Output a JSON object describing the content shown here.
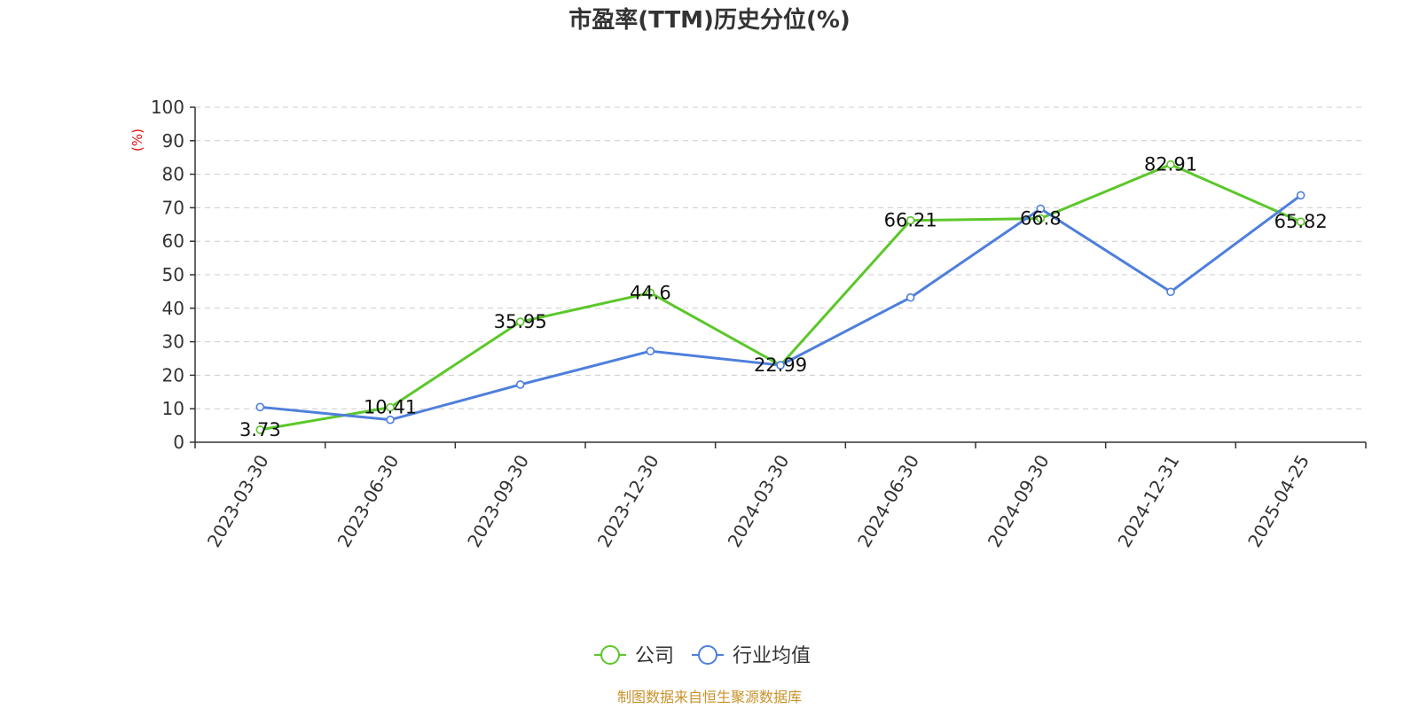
{
  "chart_data": {
    "type": "line",
    "title": "市盈率(TTM)历史分位(%)",
    "ylabel": "(%)",
    "xlabel": "",
    "categories": [
      "2023-03-30",
      "2023-06-30",
      "2023-09-30",
      "2023-12-30",
      "2024-03-30",
      "2024-06-30",
      "2024-09-30",
      "2024-12-31",
      "2025-04-25"
    ],
    "ylim": [
      0,
      100
    ],
    "yticks": [
      0,
      10,
      20,
      30,
      40,
      50,
      60,
      70,
      80,
      90,
      100
    ],
    "grid": true,
    "legend_position": "bottom-center",
    "series": [
      {
        "name": "公司",
        "color": "#5cc72a",
        "values": [
          3.73,
          10.41,
          35.95,
          44.6,
          22.99,
          66.21,
          66.8,
          82.91,
          65.82
        ],
        "labels": [
          "3.73",
          "10.41",
          "35.95",
          "44.6",
          "22.99",
          "66.21",
          "66.8",
          "82.91",
          "65.82"
        ]
      },
      {
        "name": "行业均值",
        "color": "#4e7fdc",
        "values": [
          10.5,
          6.7,
          17.2,
          27.2,
          23.0,
          43.2,
          69.7,
          44.9,
          73.7
        ]
      }
    ]
  },
  "footer": {
    "source": "制图数据来自恒生聚源数据库"
  }
}
